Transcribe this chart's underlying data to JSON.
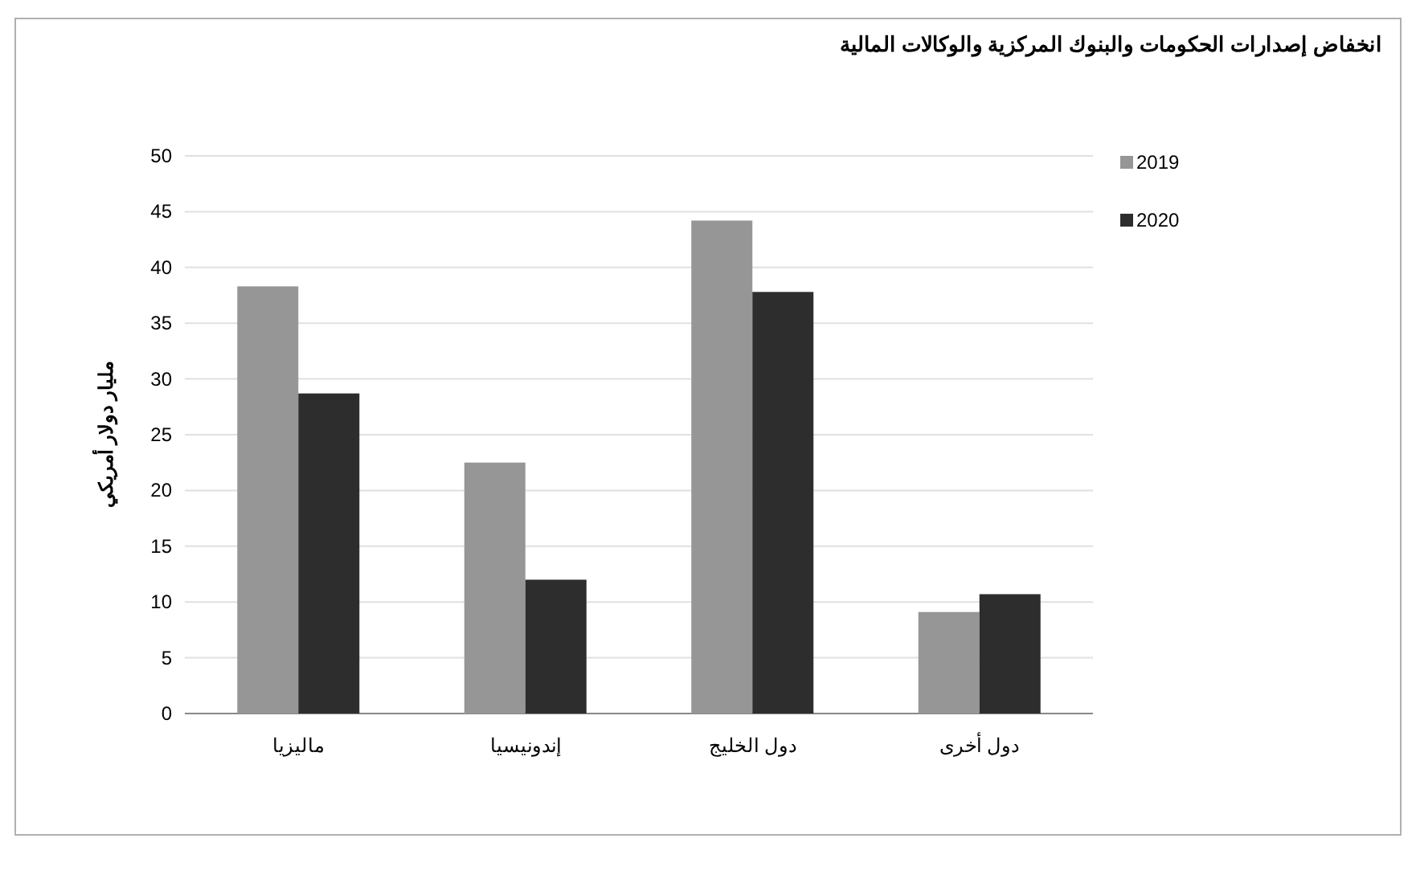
{
  "chart_data": {
    "type": "bar",
    "title": "انخفاض إصدارات الحكومات والبنوك المركزية والوكالات المالية",
    "ylabel": "مليار دولار أمريكي",
    "categories": [
      "ماليزيا",
      "إندونيسيا",
      "دول الخليج",
      "دول أخرى"
    ],
    "series": [
      {
        "name": "2019",
        "color": "#969696",
        "values": [
          38.3,
          22.5,
          44.2,
          9.1
        ]
      },
      {
        "name": "2020",
        "color": "#2d2d2d",
        "values": [
          28.7,
          12.0,
          37.8,
          10.7
        ]
      }
    ],
    "ylim": [
      0,
      50
    ],
    "yticks": [
      0,
      5,
      10,
      15,
      20,
      25,
      30,
      35,
      40,
      45,
      50
    ],
    "grid": "y",
    "legend": "top right"
  }
}
